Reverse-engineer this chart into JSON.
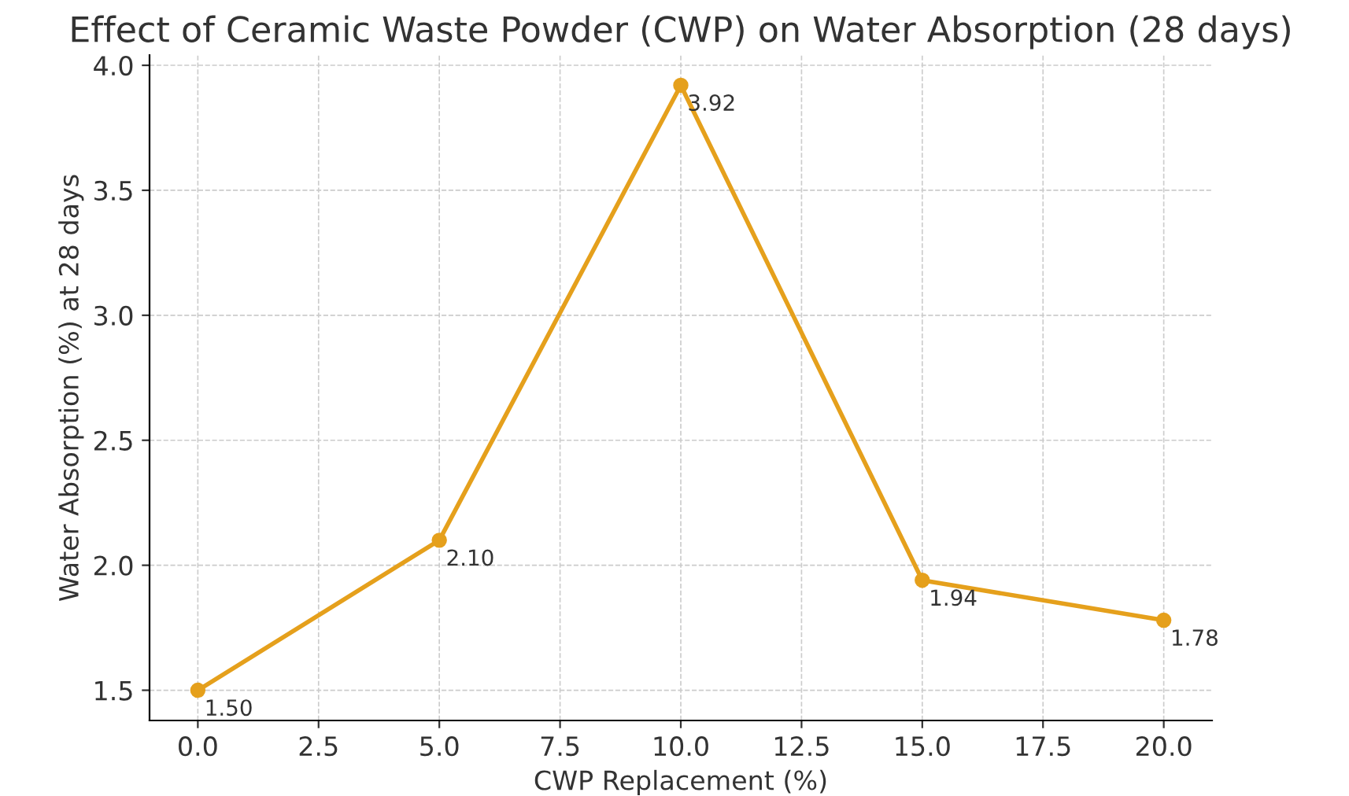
{
  "chart_data": {
    "type": "line",
    "title": "Effect of Ceramic Waste Powder (CWP) on Water Absorption (28 days)",
    "xlabel": "CWP Replacement (%)",
    "ylabel": "Water Absorption (%) at 28 days",
    "x": [
      0,
      5,
      10,
      15,
      20
    ],
    "series": [
      {
        "color": "#e5a01c",
        "values": [
          1.5,
          2.1,
          3.92,
          1.94,
          1.78
        ],
        "value_labels": [
          "1.50",
          "2.10",
          "3.92",
          "1.94",
          "1.78"
        ]
      }
    ],
    "xlim": [
      -1,
      21
    ],
    "ylim": [
      1.379,
      4.041
    ],
    "xticks": [
      {
        "value": 0,
        "label": "0.0"
      },
      {
        "value": 2.5,
        "label": "2.5"
      },
      {
        "value": 5,
        "label": "5.0"
      },
      {
        "value": 7.5,
        "label": "7.5"
      },
      {
        "value": 10,
        "label": "10.0"
      },
      {
        "value": 12.5,
        "label": "12.5"
      },
      {
        "value": 15,
        "label": "15.0"
      },
      {
        "value": 17.5,
        "label": "17.5"
      },
      {
        "value": 20,
        "label": "20.0"
      }
    ],
    "yticks": [
      {
        "value": 1.5,
        "label": "1.5"
      },
      {
        "value": 2,
        "label": "2.0"
      },
      {
        "value": 2.5,
        "label": "2.5"
      },
      {
        "value": 3,
        "label": "3.0"
      },
      {
        "value": 3.5,
        "label": "3.5"
      },
      {
        "value": 4,
        "label": "4.0"
      }
    ],
    "grid": true,
    "marker": "circle",
    "line_style": "solid"
  }
}
